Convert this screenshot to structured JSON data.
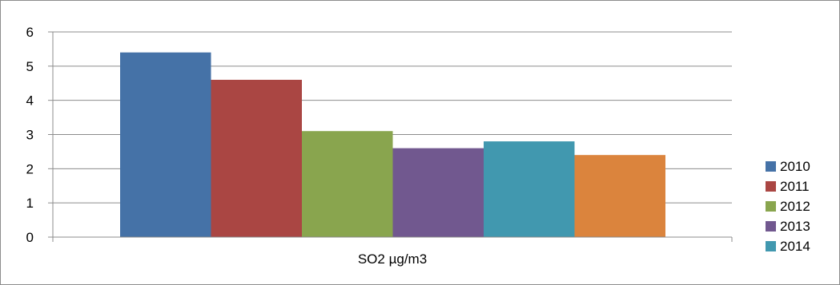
{
  "chart_data": {
    "type": "bar",
    "title": "",
    "xlabel": "",
    "ylabel": "",
    "categories": [
      "SO2 µg/m3"
    ],
    "ylim": [
      0,
      6
    ],
    "yticks": [
      0,
      1,
      2,
      3,
      4,
      5,
      6
    ],
    "grid": true,
    "legend_position": "right",
    "series": [
      {
        "name": "2010",
        "values": [
          5.4
        ],
        "color": "#4572a7"
      },
      {
        "name": "2011",
        "values": [
          4.6
        ],
        "color": "#aa4643"
      },
      {
        "name": "2012",
        "values": [
          3.1
        ],
        "color": "#89a54e"
      },
      {
        "name": "2013",
        "values": [
          2.6
        ],
        "color": "#71588f"
      },
      {
        "name": "2014",
        "values": [
          2.8
        ],
        "color": "#4198af"
      },
      {
        "name": "",
        "values": [
          2.4
        ],
        "color": "#db843d"
      }
    ]
  }
}
